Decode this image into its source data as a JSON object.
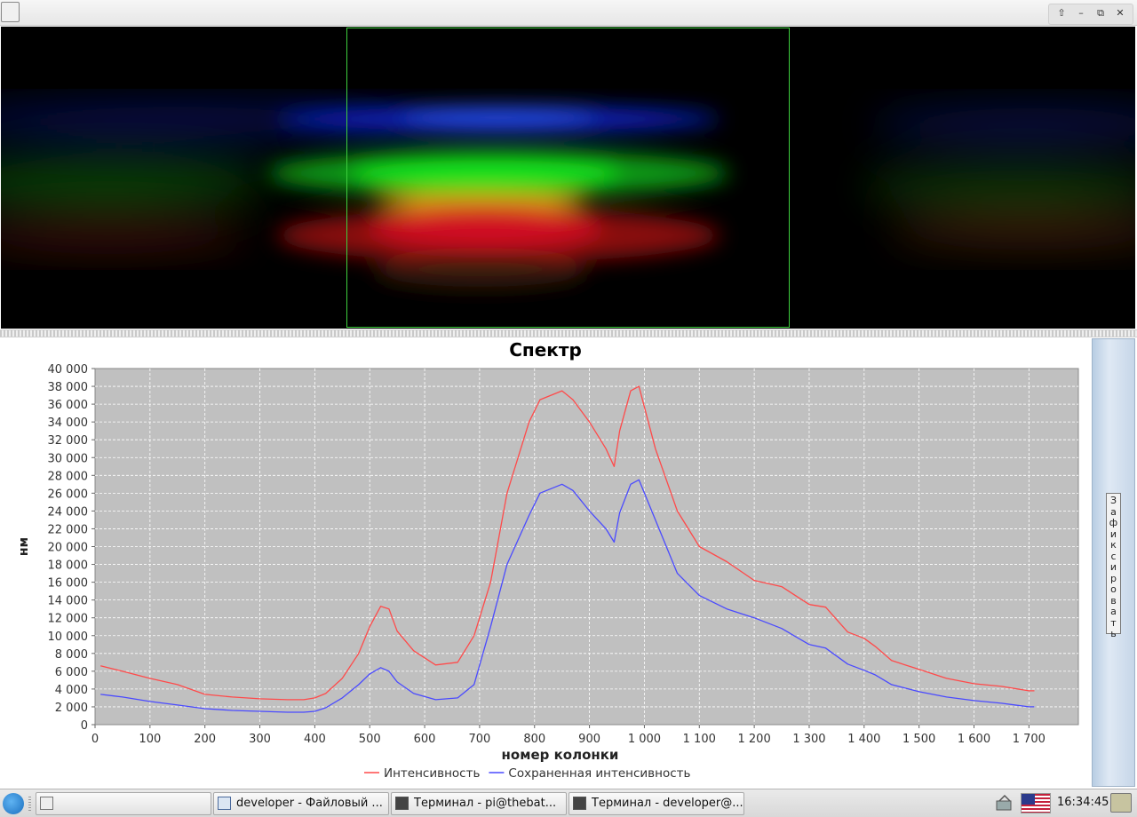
{
  "window": {
    "controls": [
      "up-arrow-icon",
      "minimize-icon",
      "restore-icon",
      "close-icon"
    ],
    "control_glyphs": [
      "⇧",
      "–",
      "⧉",
      "✕"
    ]
  },
  "selection_colors": {
    "frame": "#3ecf3e"
  },
  "chart_data": {
    "type": "line",
    "title": "Спектр",
    "xlabel": "номер колонки",
    "ylabel": "нм",
    "xlim": [
      0,
      1790
    ],
    "ylim": [
      0,
      40000
    ],
    "x_ticks": [
      0,
      100,
      200,
      300,
      400,
      500,
      600,
      700,
      800,
      900,
      1000,
      1100,
      1200,
      1300,
      1400,
      1500,
      1600,
      1700
    ],
    "x_tick_labels": [
      "0",
      "100",
      "200",
      "300",
      "400",
      "500",
      "600",
      "700",
      "800",
      "900",
      "1 000",
      "1 100",
      "1 200",
      "1 300",
      "1 400",
      "1 500",
      "1 600",
      "1 700"
    ],
    "y_ticks": [
      0,
      2000,
      4000,
      6000,
      8000,
      10000,
      12000,
      14000,
      16000,
      18000,
      20000,
      22000,
      24000,
      26000,
      28000,
      30000,
      32000,
      34000,
      36000,
      38000,
      40000
    ],
    "y_tick_labels": [
      "0",
      "2 000",
      "4 000",
      "6 000",
      "8 000",
      "10 000",
      "12 000",
      "14 000",
      "16 000",
      "18 000",
      "20 000",
      "22 000",
      "24 000",
      "26 000",
      "28 000",
      "30 000",
      "32 000",
      "34 000",
      "36 000",
      "38 000",
      "40 000"
    ],
    "grid": true,
    "legend_position": "bottom",
    "series": [
      {
        "name": "Интенсивность",
        "color": "#ff4a4a",
        "x": [
          10,
          50,
          100,
          150,
          200,
          250,
          300,
          350,
          380,
          400,
          420,
          450,
          480,
          500,
          520,
          535,
          550,
          580,
          620,
          660,
          690,
          720,
          750,
          790,
          810,
          830,
          850,
          870,
          900,
          930,
          945,
          955,
          975,
          990,
          1020,
          1060,
          1100,
          1150,
          1200,
          1250,
          1300,
          1330,
          1370,
          1400,
          1420,
          1450,
          1500,
          1550,
          1600,
          1650,
          1700,
          1710
        ],
        "y": [
          6600,
          6000,
          5200,
          4500,
          3400,
          3100,
          2900,
          2800,
          2800,
          3000,
          3500,
          5200,
          8000,
          11000,
          13300,
          13000,
          10500,
          8300,
          6700,
          7000,
          10000,
          16000,
          26000,
          34000,
          36500,
          37000,
          37500,
          36500,
          34000,
          31000,
          29000,
          33000,
          37500,
          38000,
          31000,
          24000,
          20000,
          18300,
          16200,
          15500,
          13500,
          13200,
          10400,
          9700,
          8800,
          7200,
          6200,
          5200,
          4600,
          4300,
          3800,
          3800
        ]
      },
      {
        "name": "Сохраненная интенсивность",
        "color": "#4a4aff",
        "x": [
          10,
          50,
          100,
          150,
          200,
          250,
          300,
          350,
          380,
          400,
          420,
          450,
          480,
          500,
          520,
          535,
          550,
          580,
          620,
          660,
          690,
          720,
          750,
          790,
          810,
          830,
          850,
          870,
          900,
          930,
          945,
          955,
          975,
          990,
          1020,
          1060,
          1100,
          1150,
          1200,
          1250,
          1300,
          1330,
          1370,
          1400,
          1420,
          1450,
          1500,
          1550,
          1600,
          1650,
          1700,
          1710
        ],
        "y": [
          3400,
          3100,
          2600,
          2200,
          1800,
          1600,
          1500,
          1400,
          1400,
          1500,
          1900,
          3000,
          4500,
          5700,
          6400,
          6000,
          4800,
          3500,
          2800,
          3000,
          4500,
          11000,
          18000,
          23500,
          26000,
          26500,
          27000,
          26300,
          24000,
          22000,
          20500,
          23800,
          27000,
          27500,
          23000,
          17000,
          14500,
          13000,
          12000,
          10800,
          9000,
          8600,
          6800,
          6100,
          5600,
          4500,
          3700,
          3100,
          2700,
          2400,
          2000,
          2000
        ]
      }
    ]
  },
  "fix_button": {
    "label": "Зафиксировать"
  },
  "taskbar": {
    "tasks": [
      {
        "label": ""
      },
      {
        "label": "developer - Файловый ..."
      },
      {
        "label": "Терминал - pi@thebat..."
      },
      {
        "label": "Терминал - developer@..."
      }
    ],
    "clock": "16:34:45"
  }
}
